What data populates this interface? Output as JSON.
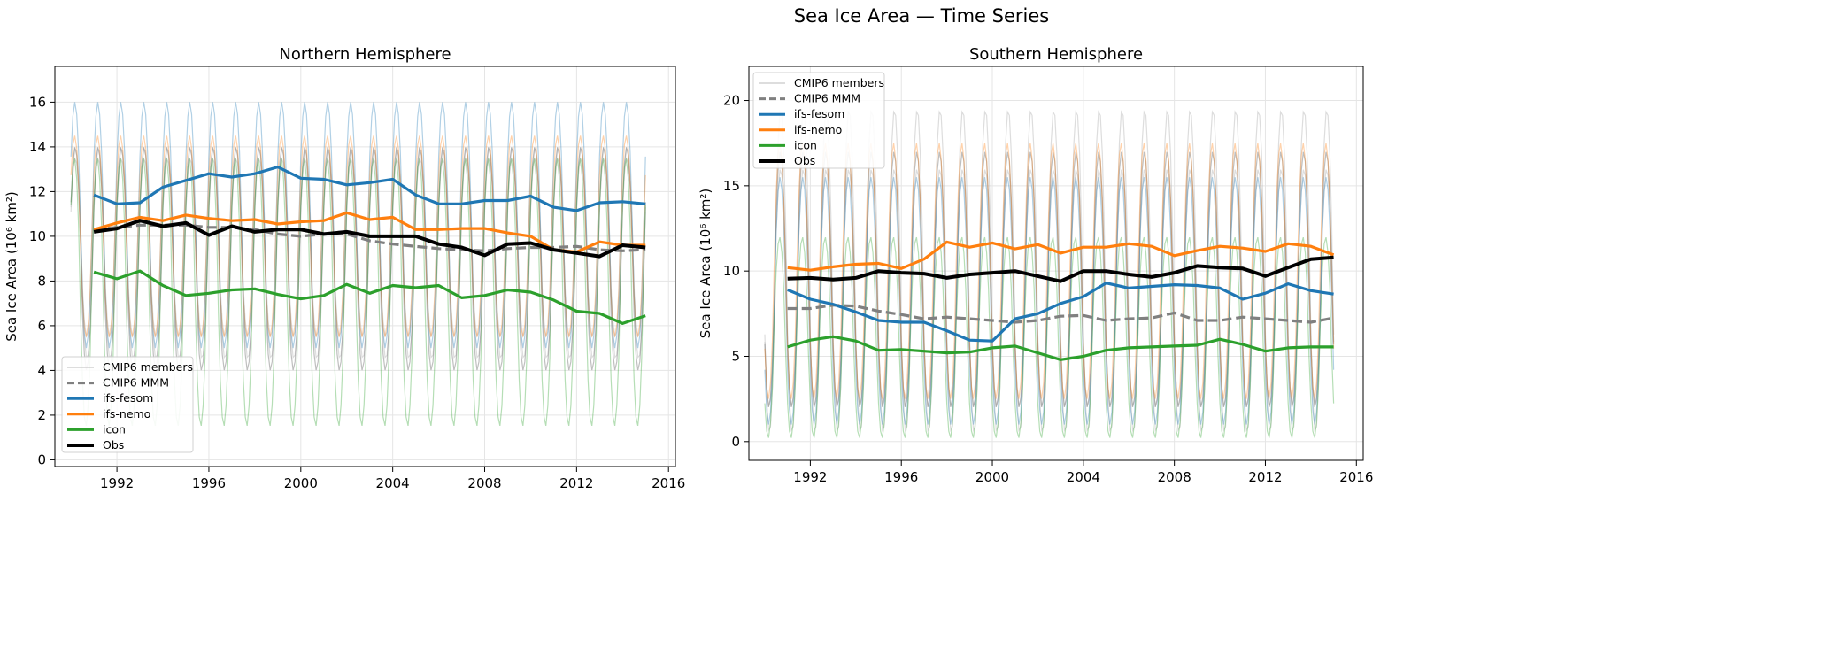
{
  "suptitle": "Sea Ice Area — Time Series",
  "colors": {
    "cmip6_members": "#bbbbbb",
    "cmip6_mmm": "#808080",
    "ifs-fesom": "#1f77b4",
    "ifs-nemo": "#ff7f0e",
    "icon": "#2ca02c",
    "obs": "#000000"
  },
  "chart_data": [
    {
      "type": "line",
      "title": "Northern Hemisphere",
      "ylabel": "Sea Ice Area (10⁶ km²)",
      "xlabel": "",
      "xlim": [
        1989.3,
        2016.3
      ],
      "ylim": [
        -0.3,
        17.6
      ],
      "grid": true,
      "legend": "lower-left",
      "xticks": [
        1992,
        1996,
        2000,
        2004,
        2008,
        2012,
        2016
      ],
      "yticks": [
        0,
        2,
        4,
        6,
        8,
        10,
        12,
        14,
        16
      ],
      "legend_entries": [
        "CMIP6 members",
        "CMIP6 MMM",
        "ifs-fesom",
        "ifs-nemo",
        "icon",
        "Obs"
      ],
      "x": [
        1991,
        1992,
        1993,
        1994,
        1995,
        1996,
        1997,
        1998,
        1999,
        2000,
        2001,
        2002,
        2003,
        2004,
        2005,
        2006,
        2007,
        2008,
        2009,
        2010,
        2011,
        2012,
        2013,
        2014,
        2015
      ],
      "series": [
        {
          "name": "CMIP6 MMM",
          "key": "cmip6_mmm",
          "dashed": true,
          "values": [
            10.3,
            10.4,
            10.5,
            10.5,
            10.5,
            10.4,
            10.4,
            10.3,
            10.1,
            10.0,
            10.1,
            10.1,
            9.8,
            9.65,
            9.55,
            9.45,
            9.4,
            9.35,
            9.45,
            9.5,
            9.5,
            9.55,
            9.4,
            9.35,
            9.4
          ]
        },
        {
          "name": "ifs-fesom",
          "key": "ifs-fesom",
          "values": [
            11.85,
            11.45,
            11.5,
            12.2,
            12.5,
            12.8,
            12.65,
            12.8,
            13.1,
            12.6,
            12.55,
            12.3,
            12.4,
            12.55,
            11.85,
            11.45,
            11.45,
            11.6,
            11.6,
            11.8,
            11.3,
            11.15,
            11.5,
            11.55,
            11.45
          ]
        },
        {
          "name": "ifs-nemo",
          "key": "ifs-nemo",
          "values": [
            10.3,
            10.6,
            10.85,
            10.7,
            10.95,
            10.8,
            10.7,
            10.75,
            10.55,
            10.65,
            10.7,
            11.05,
            10.75,
            10.85,
            10.3,
            10.3,
            10.35,
            10.35,
            10.15,
            10.0,
            9.4,
            9.3,
            9.75,
            9.6,
            9.6
          ]
        },
        {
          "name": "icon",
          "key": "icon",
          "values": [
            8.4,
            8.1,
            8.45,
            7.8,
            7.35,
            7.45,
            7.6,
            7.65,
            7.4,
            7.2,
            7.35,
            7.85,
            7.45,
            7.8,
            7.7,
            7.8,
            7.25,
            7.35,
            7.6,
            7.5,
            7.15,
            6.65,
            6.55,
            6.1,
            6.45
          ]
        },
        {
          "name": "Obs",
          "key": "obs",
          "values": [
            10.2,
            10.35,
            10.7,
            10.45,
            10.6,
            10.05,
            10.45,
            10.2,
            10.3,
            10.3,
            10.1,
            10.2,
            10.0,
            10.0,
            10.0,
            9.65,
            9.5,
            9.15,
            9.65,
            9.7,
            9.4,
            9.25,
            9.1,
            9.6,
            9.5
          ]
        }
      ],
      "monthly_range": [
        {
          "key": "cmip6_members",
          "min": 4.5,
          "max": 14.0
        },
        {
          "key": "cmip6_members",
          "min": 5.5,
          "max": 13.5
        },
        {
          "key": "cmip6_mmm",
          "min": 4.0,
          "max": 14.0
        },
        {
          "key": "ifs-fesom",
          "min": 5.0,
          "max": 16.0
        },
        {
          "key": "ifs-nemo",
          "min": 5.5,
          "max": 14.5
        },
        {
          "key": "icon",
          "min": 1.5,
          "max": 13.5
        }
      ]
    },
    {
      "type": "line",
      "title": "Southern Hemisphere",
      "ylabel": "Sea Ice Area (10⁶ km²)",
      "xlabel": "",
      "xlim": [
        1989.3,
        2016.3
      ],
      "ylim": [
        -1.1,
        22.0
      ],
      "grid": true,
      "legend": "upper-left",
      "xticks": [
        1992,
        1996,
        2000,
        2004,
        2008,
        2012,
        2016
      ],
      "yticks": [
        0,
        5,
        10,
        15,
        20
      ],
      "legend_entries": [
        "CMIP6 members",
        "CMIP6 MMM",
        "ifs-fesom",
        "ifs-nemo",
        "icon",
        "Obs"
      ],
      "x": [
        1991,
        1992,
        1993,
        1994,
        1995,
        1996,
        1997,
        1998,
        1999,
        2000,
        2001,
        2002,
        2003,
        2004,
        2005,
        2006,
        2007,
        2008,
        2009,
        2010,
        2011,
        2012,
        2013,
        2014,
        2015
      ],
      "series": [
        {
          "name": "CMIP6 MMM",
          "key": "cmip6_mmm",
          "dashed": true,
          "values": [
            7.8,
            7.8,
            8.0,
            7.95,
            7.65,
            7.45,
            7.2,
            7.3,
            7.2,
            7.1,
            7.0,
            7.1,
            7.35,
            7.4,
            7.1,
            7.2,
            7.25,
            7.55,
            7.1,
            7.1,
            7.3,
            7.2,
            7.1,
            7.0,
            7.25
          ]
        },
        {
          "name": "ifs-fesom",
          "key": "ifs-fesom",
          "values": [
            8.9,
            8.35,
            8.05,
            7.6,
            7.1,
            7.0,
            7.0,
            6.5,
            5.95,
            5.9,
            7.2,
            7.5,
            8.1,
            8.5,
            9.3,
            9.0,
            9.1,
            9.2,
            9.15,
            9.0,
            8.35,
            8.7,
            9.25,
            8.85,
            8.65
          ]
        },
        {
          "name": "ifs-nemo",
          "key": "ifs-nemo",
          "values": [
            10.2,
            10.05,
            10.25,
            10.4,
            10.45,
            10.15,
            10.7,
            11.7,
            11.4,
            11.65,
            11.3,
            11.55,
            11.05,
            11.4,
            11.4,
            11.6,
            11.45,
            10.9,
            11.2,
            11.45,
            11.35,
            11.15,
            11.6,
            11.45,
            10.95
          ]
        },
        {
          "name": "icon",
          "key": "icon",
          "values": [
            5.55,
            5.95,
            6.15,
            5.9,
            5.35,
            5.4,
            5.3,
            5.2,
            5.25,
            5.5,
            5.6,
            5.2,
            4.8,
            5.0,
            5.35,
            5.5,
            5.55,
            5.6,
            5.65,
            6.0,
            5.7,
            5.3,
            5.5,
            5.55,
            5.55
          ]
        },
        {
          "name": "Obs",
          "key": "obs",
          "values": [
            9.55,
            9.6,
            9.5,
            9.6,
            10.0,
            9.9,
            9.85,
            9.6,
            9.8,
            9.9,
            10.0,
            9.7,
            9.4,
            10.0,
            10.0,
            9.8,
            9.65,
            9.9,
            10.3,
            10.2,
            10.15,
            9.7,
            10.2,
            10.7,
            10.8
          ]
        }
      ],
      "monthly_range": [
        {
          "key": "cmip6_members",
          "min": 0.5,
          "max": 19.5
        },
        {
          "key": "cmip6_members",
          "min": 2.0,
          "max": 16.0
        },
        {
          "key": "cmip6_mmm",
          "min": 2.0,
          "max": 17.0
        },
        {
          "key": "ifs-fesom",
          "min": 1.0,
          "max": 15.5
        },
        {
          "key": "ifs-nemo",
          "min": 2.5,
          "max": 17.5
        },
        {
          "key": "icon",
          "min": 0.2,
          "max": 12.0
        }
      ]
    }
  ]
}
